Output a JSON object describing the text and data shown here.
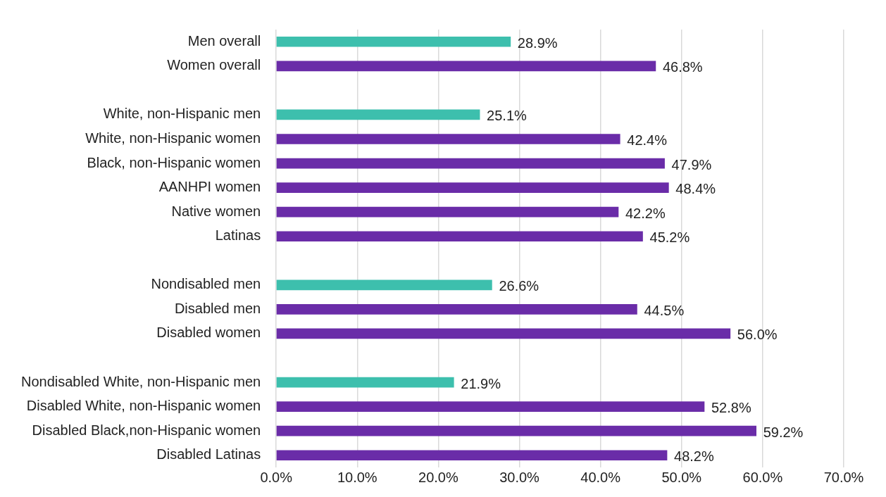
{
  "chart_data": {
    "type": "bar",
    "orientation": "horizontal",
    "categories": [
      "Men overall",
      "Women overall",
      null,
      "White, non-Hispanic men",
      "White, non-Hispanic women",
      "Black, non-Hispanic women",
      "AANHPI women",
      "Native women",
      "Latinas",
      null,
      "Nondisabled men",
      "Disabled men",
      "Disabled women",
      null,
      "Nondisabled White, non-Hispanic men",
      "Disabled White, non-Hispanic women",
      "Disabled Black,non-Hispanic women",
      "Disabled Latinas"
    ],
    "values": [
      28.9,
      46.8,
      null,
      25.1,
      42.4,
      47.9,
      48.4,
      42.2,
      45.2,
      null,
      26.6,
      44.5,
      56.0,
      null,
      21.9,
      52.8,
      59.2,
      48.2
    ],
    "colors": [
      "#3dbfad",
      "#6a2ca8",
      null,
      "#3dbfad",
      "#6a2ca8",
      "#6a2ca8",
      "#6a2ca8",
      "#6a2ca8",
      "#6a2ca8",
      null,
      "#3dbfad",
      "#6a2ca8",
      "#6a2ca8",
      null,
      "#3dbfad",
      "#6a2ca8",
      "#6a2ca8",
      "#6a2ca8"
    ],
    "value_labels": [
      "28.9%",
      "46.8%",
      null,
      "25.1%",
      "42.4%",
      "47.9%",
      "48.4%",
      "42.2%",
      "45.2%",
      null,
      "26.6%",
      "44.5%",
      "56.0%",
      null,
      "21.9%",
      "52.8%",
      "59.2%",
      "48.2%"
    ],
    "xlim": [
      0,
      70
    ],
    "xticks": [
      {
        "value": 0,
        "label": "0.0%"
      },
      {
        "value": 10,
        "label": "10.0%"
      },
      {
        "value": 20,
        "label": "20.0%"
      },
      {
        "value": 30,
        "label": "30.0%"
      },
      {
        "value": 40,
        "label": "40.0%"
      },
      {
        "value": 50,
        "label": "50.0%"
      },
      {
        "value": 60,
        "label": "60.0%"
      },
      {
        "value": 70,
        "label": "70.0%"
      }
    ],
    "grid": "x",
    "legend": false
  }
}
